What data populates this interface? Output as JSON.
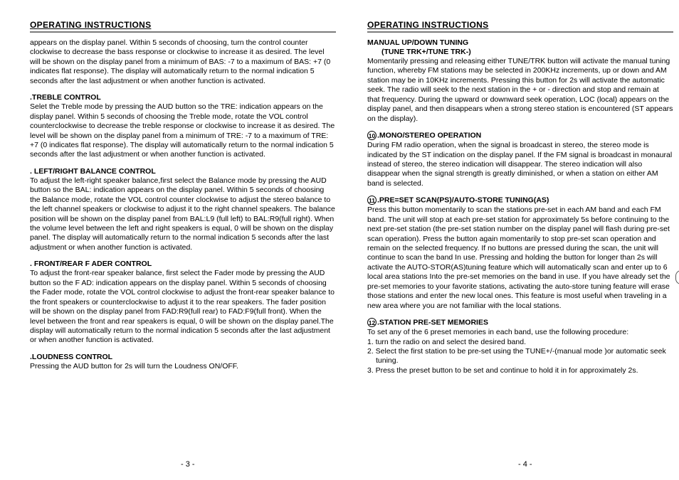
{
  "left": {
    "title": "OPERATING INSTRUCTIONS",
    "intro": "appears on the display panel. Within 5 seconds of choosing, turn the control counter clockwise to decrease the bass response or clockwise to increase it as desired. The level will be shown on the display panel from a minimum of BAS: -7 to a maximum of BAS: +7 (0 indicates flat response). The display will automatically return to the normal indication 5 seconds after the last adjustment or when another function is activated.",
    "sec1_h": ".TREBLE CONTROL",
    "sec1_b": "Selet the Treble mode by pressing the AUD button  so the    TRE: indication appears on the display panel. Within 5 seconds of choosing the Treble mode, rotate the VOL control  counterclockwise to decrease the treble response or clockwise to increase it as desired. The level will be shown on the display panel from a minimum of TRE: -7 to a maximum of TRE: +7 (0 indicates flat response). The display will automatically return to the normal indication 5 seconds after the last adjustment or when another function is activated.",
    "sec2_h": ". LEFT/RIGHT BALANCE CONTROL",
    "sec2_b": "To adjust the left-right speaker balance,first select the Balance mode by pressing the AUD button  so the BAL: indication appears on the display panel. Within 5 seconds of choosing the Balance mode, rotate the VOL control counter clockwise to adjust the stereo balance to the left channel speakers or clockwise to adjust it to the right channel speakers. The balance position will be shown on the display panel from BAL:L9 (full left) to BAL:R9(full right). When the volume level between the left and right speakers is equal, 0 will be shown on the display panel. The display will automatically return to the normal indication 5 seconds after the last adjustment or when another function is activated.",
    "sec3_h": ". FRONT/REAR F    ADER CONTROL",
    "sec3_b": "To adjust the front-rear speaker balance, first select the Fader mode by pressing the AUD button  so the F    AD: indication appears on the display panel. Within 5 seconds of choosing the Fader mode, rotate the VOL control  clockwise to adjust the front-rear speaker balance to the front speakers or counterclockwise to adjust it to the rear speakers. The fader position will be shown on the display panel from FAD:R9(full rear) to FAD:F9(full front). When the level between the front and rear speakers is equal, 0 will be shown on the display panel.The display will automatically return to the normal indication 5 seconds after the last adjustment or when another function is activated.",
    "sec4_h": ".LOUDNESS CONTROL",
    "sec4_b": "Pressing the AUD button for 2s will turn the Loudness ON/OFF.",
    "pagenum": "- 3 -"
  },
  "right": {
    "title": "OPERATING INSTRUCTIONS",
    "sec1_h": "MANUAL    UP/DOWN TUNING",
    "sec1_sub": "(TUNE TRK+/TUNE TRK-)",
    "sec1_b": "Momentarily pressing and releasing either TUNE/TRK button will activate the manual tuning function, whereby FM stations may be selected in 200KHz increments, up or down and AM station may be in 10KHz increments. Pressing this button for 2s will activate the automatic seek. The radio will seek to the next station in the + or - direction and stop and remain at that frequency. During the upward or downward seek operation, LOC (local) appears on the display panel, and then disappears when a strong stereo station is encountered (ST appears on the display).",
    "sec2_n": "10",
    "sec2_h": ".MONO/STEREO OPERATION",
    "sec2_b": "During FM radio operation, when the signal is broadcast in stereo, the stereo mode is indicated by the ST indication on the display panel. If the FM  signal is broadcast in monaural instead of stereo, the stereo indication will disappear. The stereo indication will also disappear when the signal strength is greatly diminished, or when a station on either AM band is selected.",
    "sec3_n": "11",
    "sec3_h": ".PRE=SET SCAN(PS)/AUTO-STORE TUNING(AS)",
    "sec3_b": "Press this button momentarily to scan the stations pre-set in each AM band and each FM band. The unit will stop at each pre-set station for approximately 5s before continuing to the next pre-set station (the pre-set station number on the display panel will flash during pre-set scan operation). Press the button again momentarily to stop pre-set scan operation and remain on the selected frequency.  If no buttons are pressed during the scan, the unit will continue to scan the band In use. Pressing and holding the button for longer than 2s will activate the AUTO-STOR(AS)tuning feature which will automatically scan and enter up to 6 local area stations Into the pre-set memories on the band in use. If you have already set the pre-set memories to your favorite stations, activating the auto-store tuning feature will erase those stations and enter the new local ones. This feature is most useful when traveling in a new area where you are not familiar with the local stations.",
    "sec4_n": "12",
    "sec4_h": ".STATION PRE-SET MEMORIES",
    "sec4_l0": "To  set  any of the 6 preset memories in each band, use the following procedure:",
    "sec4_l1": "1. turn the radio on and select the desired band.",
    "sec4_l2": "2. Select the first station to be pre-set using the TUNE+/-(manual mode )or automatic seek tuning.",
    "sec4_l3": "3. Press the preset button to be set and continue to hold it in for approximately 2s.",
    "pagenum": "- 4 -"
  }
}
